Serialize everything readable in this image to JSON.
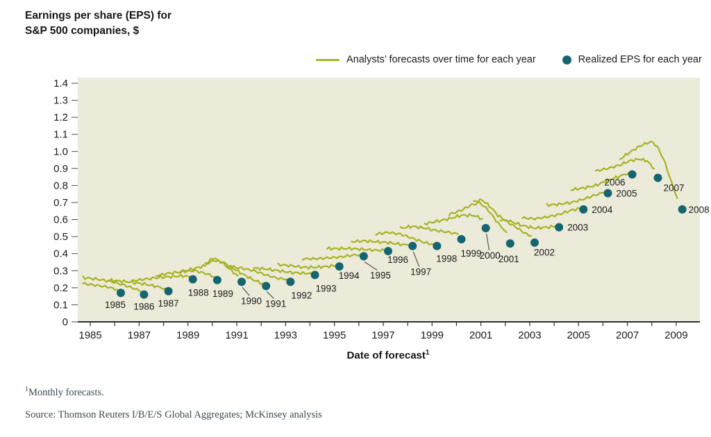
{
  "title": {
    "line1": "Earnings per share (EPS) for",
    "line2": "S&P 500 companies, $"
  },
  "legend": {
    "forecast_label": "Analysts’ forecasts over time for each year",
    "realized_label": "Realized EPS for each year"
  },
  "footnote": {
    "sup": "1",
    "text": "Monthly forecasts."
  },
  "source": "Source: Thomson Reuters I/B/E/S Global Aggregates; McKinsey analysis",
  "colors": {
    "forecast_line": "#a6b223",
    "realized_dot": "#156570",
    "panel_bg": "#ecead9",
    "axis_line": "#2d2d2d",
    "axis_text": "#1a1a1a",
    "serif_text": "#3d4a52"
  },
  "chart_data": {
    "type": "line",
    "title": "Earnings per share (EPS) for S&P 500 companies, $",
    "xlabel": "Date of forecast",
    "xlabel_sup": "1",
    "xlim": [
      1984.6,
      2009.8
    ],
    "ylim": [
      0,
      1.4
    ],
    "y_ticks": [
      "1.4",
      "1.3",
      "1.2",
      "1.1",
      "1.0",
      "0.9",
      "0.8",
      "0.7",
      "0.6",
      "0.5",
      "0.4",
      "0.3",
      "0.2",
      "0.1",
      "0"
    ],
    "x_tick_labels": [
      "1985",
      "1987",
      "1989",
      "1991",
      "1993",
      "1995",
      "1997",
      "1999",
      "2001",
      "2003",
      "2005",
      "2007",
      "2009"
    ],
    "x_minor_tick_every": 1,
    "grid": false,
    "legend_position": "top",
    "series": [
      {
        "year": "1985",
        "realized": 0.17,
        "dot_x": 1986.25,
        "forecast": [
          [
            1984.7,
            0.225
          ],
          [
            1985.2,
            0.215
          ],
          [
            1985.7,
            0.205
          ],
          [
            1986.1,
            0.19
          ]
        ]
      },
      {
        "year": "1986",
        "realized": 0.16,
        "dot_x": 1987.2,
        "forecast": [
          [
            1984.7,
            0.26
          ],
          [
            1985.3,
            0.25
          ],
          [
            1985.9,
            0.235
          ],
          [
            1986.4,
            0.215
          ],
          [
            1986.9,
            0.19
          ],
          [
            1987.05,
            0.18
          ]
        ]
      },
      {
        "year": "1987",
        "realized": 0.18,
        "dot_x": 1988.2,
        "forecast": [
          [
            1985.7,
            0.245
          ],
          [
            1986.2,
            0.24
          ],
          [
            1986.8,
            0.23
          ],
          [
            1987.3,
            0.22
          ],
          [
            1987.8,
            0.205
          ],
          [
            1988.05,
            0.195
          ]
        ]
      },
      {
        "year": "1988",
        "realized": 0.25,
        "dot_x": 1989.2,
        "forecast": [
          [
            1986.7,
            0.24
          ],
          [
            1987.2,
            0.25
          ],
          [
            1987.8,
            0.26
          ],
          [
            1988.3,
            0.265
          ],
          [
            1988.8,
            0.27
          ],
          [
            1989.05,
            0.265
          ]
        ]
      },
      {
        "year": "1989",
        "realized": 0.245,
        "dot_x": 1990.2,
        "forecast": [
          [
            1987.7,
            0.27
          ],
          [
            1988.2,
            0.285
          ],
          [
            1988.8,
            0.295
          ],
          [
            1989.3,
            0.3
          ],
          [
            1989.8,
            0.28
          ],
          [
            1990.05,
            0.265
          ]
        ]
      },
      {
        "year": "1990",
        "realized": 0.235,
        "dot_x": 1991.2,
        "forecast": [
          [
            1988.7,
            0.295
          ],
          [
            1989.2,
            0.31
          ],
          [
            1989.7,
            0.33
          ],
          [
            1990.0,
            0.375
          ],
          [
            1990.35,
            0.355
          ],
          [
            1990.7,
            0.31
          ],
          [
            1991.05,
            0.27
          ]
        ]
      },
      {
        "year": "1991",
        "realized": 0.21,
        "dot_x": 1992.2,
        "forecast": [
          [
            1989.7,
            0.34
          ],
          [
            1990.1,
            0.36
          ],
          [
            1990.5,
            0.345
          ],
          [
            1990.9,
            0.31
          ],
          [
            1991.3,
            0.275
          ],
          [
            1991.7,
            0.245
          ],
          [
            1992.05,
            0.225
          ]
        ]
      },
      {
        "year": "1992",
        "realized": 0.235,
        "dot_x": 1993.2,
        "forecast": [
          [
            1990.7,
            0.325
          ],
          [
            1991.2,
            0.315
          ],
          [
            1991.7,
            0.3
          ],
          [
            1992.2,
            0.275
          ],
          [
            1992.7,
            0.255
          ],
          [
            1993.05,
            0.25
          ]
        ]
      },
      {
        "year": "1993",
        "realized": 0.275,
        "dot_x": 1994.2,
        "forecast": [
          [
            1991.7,
            0.315
          ],
          [
            1992.2,
            0.31
          ],
          [
            1992.7,
            0.3
          ],
          [
            1993.2,
            0.29
          ],
          [
            1993.7,
            0.285
          ],
          [
            1994.05,
            0.285
          ]
        ]
      },
      {
        "year": "1994",
        "realized": 0.325,
        "dot_x": 1995.2,
        "forecast": [
          [
            1992.7,
            0.335
          ],
          [
            1993.2,
            0.33
          ],
          [
            1993.7,
            0.32
          ],
          [
            1994.2,
            0.32
          ],
          [
            1994.7,
            0.325
          ],
          [
            1995.05,
            0.33
          ]
        ]
      },
      {
        "year": "1995",
        "realized": 0.385,
        "dot_x": 1996.2,
        "forecast": [
          [
            1993.7,
            0.37
          ],
          [
            1994.2,
            0.37
          ],
          [
            1994.7,
            0.375
          ],
          [
            1995.2,
            0.38
          ],
          [
            1995.7,
            0.39
          ],
          [
            1996.05,
            0.395
          ]
        ]
      },
      {
        "year": "1996",
        "realized": 0.415,
        "dot_x": 1997.2,
        "forecast": [
          [
            1994.7,
            0.43
          ],
          [
            1995.2,
            0.43
          ],
          [
            1995.7,
            0.43
          ],
          [
            1996.2,
            0.425
          ],
          [
            1996.7,
            0.42
          ],
          [
            1997.05,
            0.42
          ]
        ]
      },
      {
        "year": "1997",
        "realized": 0.445,
        "dot_x": 1998.2,
        "forecast": [
          [
            1995.7,
            0.47
          ],
          [
            1996.2,
            0.475
          ],
          [
            1996.7,
            0.47
          ],
          [
            1997.2,
            0.465
          ],
          [
            1997.7,
            0.455
          ],
          [
            1998.05,
            0.45
          ]
        ]
      },
      {
        "year": "1998",
        "realized": 0.445,
        "dot_x": 1999.2,
        "forecast": [
          [
            1996.7,
            0.515
          ],
          [
            1997.2,
            0.525
          ],
          [
            1997.7,
            0.515
          ],
          [
            1998.2,
            0.49
          ],
          [
            1998.7,
            0.465
          ],
          [
            1999.05,
            0.455
          ]
        ]
      },
      {
        "year": "1999",
        "realized": 0.485,
        "dot_x": 2000.2,
        "forecast": [
          [
            1997.7,
            0.55
          ],
          [
            1998.2,
            0.56
          ],
          [
            1998.7,
            0.55
          ],
          [
            1999.2,
            0.535
          ],
          [
            1999.7,
            0.525
          ],
          [
            2000.05,
            0.515
          ]
        ]
      },
      {
        "year": "2000",
        "realized": 0.55,
        "dot_x": 2001.2,
        "forecast": [
          [
            1998.7,
            0.575
          ],
          [
            1999.2,
            0.59
          ],
          [
            1999.7,
            0.605
          ],
          [
            2000.2,
            0.625
          ],
          [
            2000.7,
            0.625
          ],
          [
            2001.05,
            0.605
          ]
        ]
      },
      {
        "year": "2001",
        "realized": 0.46,
        "dot_x": 2002.2,
        "forecast": [
          [
            1999.7,
            0.63
          ],
          [
            2000.2,
            0.655
          ],
          [
            2000.6,
            0.685
          ],
          [
            2000.95,
            0.7
          ],
          [
            2001.3,
            0.655
          ],
          [
            2001.7,
            0.58
          ],
          [
            2002.05,
            0.525
          ]
        ]
      },
      {
        "year": "2002",
        "realized": 0.465,
        "dot_x": 2003.2,
        "forecast": [
          [
            2000.7,
            0.705
          ],
          [
            2001.05,
            0.715
          ],
          [
            2001.35,
            0.68
          ],
          [
            2001.7,
            0.625
          ],
          [
            2002.1,
            0.585
          ],
          [
            2002.5,
            0.55
          ],
          [
            2002.8,
            0.52
          ],
          [
            2003.05,
            0.505
          ]
        ]
      },
      {
        "year": "2003",
        "realized": 0.555,
        "dot_x": 2004.2,
        "forecast": [
          [
            2001.8,
            0.6
          ],
          [
            2002.2,
            0.59
          ],
          [
            2002.7,
            0.565
          ],
          [
            2003.2,
            0.55
          ],
          [
            2003.7,
            0.555
          ],
          [
            2004.05,
            0.56
          ]
        ]
      },
      {
        "year": "2004",
        "realized": 0.66,
        "dot_x": 2005.2,
        "forecast": [
          [
            2002.7,
            0.61
          ],
          [
            2003.2,
            0.605
          ],
          [
            2003.7,
            0.615
          ],
          [
            2004.2,
            0.63
          ],
          [
            2004.7,
            0.655
          ],
          [
            2005.05,
            0.665
          ]
        ]
      },
      {
        "year": "2005",
        "realized": 0.755,
        "dot_x": 2006.2,
        "forecast": [
          [
            2003.7,
            0.685
          ],
          [
            2004.2,
            0.69
          ],
          [
            2004.7,
            0.7
          ],
          [
            2005.2,
            0.72
          ],
          [
            2005.7,
            0.745
          ],
          [
            2006.05,
            0.76
          ]
        ]
      },
      {
        "year": "2006",
        "realized": 0.865,
        "dot_x": 2007.2,
        "forecast": [
          [
            2004.7,
            0.775
          ],
          [
            2005.2,
            0.785
          ],
          [
            2005.7,
            0.8
          ],
          [
            2006.2,
            0.83
          ],
          [
            2006.7,
            0.855
          ],
          [
            2007.05,
            0.875
          ]
        ]
      },
      {
        "year": "2007",
        "realized": 0.845,
        "dot_x": 2008.25,
        "forecast": [
          [
            2005.7,
            0.885
          ],
          [
            2006.2,
            0.9
          ],
          [
            2006.7,
            0.92
          ],
          [
            2007.1,
            0.945
          ],
          [
            2007.5,
            0.955
          ],
          [
            2007.8,
            0.945
          ],
          [
            2008.1,
            0.9
          ]
        ]
      },
      {
        "year": "2008",
        "realized": 0.66,
        "dot_x": 2009.25,
        "forecast": [
          [
            2006.7,
            0.955
          ],
          [
            2007.1,
            0.995
          ],
          [
            2007.5,
            1.03
          ],
          [
            2007.8,
            1.05
          ],
          [
            2008.05,
            1.055
          ],
          [
            2008.3,
            1.01
          ],
          [
            2008.55,
            0.93
          ],
          [
            2008.8,
            0.82
          ],
          [
            2009.05,
            0.725
          ]
        ]
      }
    ]
  }
}
